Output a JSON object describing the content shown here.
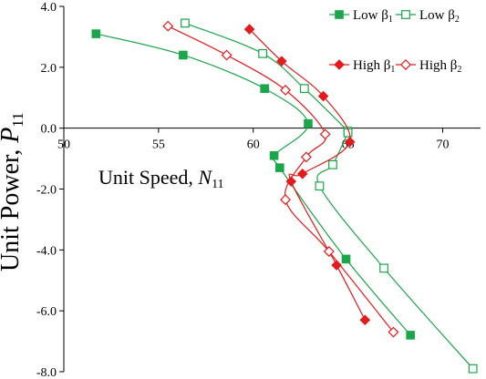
{
  "chart_data": {
    "type": "scatter",
    "xlabel": {
      "main": "Unit Speed, ",
      "var": "N",
      "sub": "11"
    },
    "ylabel": {
      "main": "Unit Power, ",
      "var": "P",
      "sub": "11"
    },
    "xlim": [
      50,
      72
    ],
    "ylim": [
      -8,
      4
    ],
    "xticks": [
      50,
      55,
      60,
      65,
      70
    ],
    "xtick_labels": [
      "50",
      "55",
      "60",
      "65",
      "70"
    ],
    "yticks": [
      4,
      2,
      0,
      -2,
      -4,
      -6,
      -8
    ],
    "ytick_labels": [
      "4.0",
      "2.0",
      "0.0",
      "-2.0",
      "-4.0",
      "-6.0",
      "-8.0"
    ],
    "grid": false,
    "legend_position": "top-right",
    "series": [
      {
        "name": "Low β₁",
        "label_main": "Low β",
        "label_sub": "1",
        "color": "#1aa64a",
        "marker": "square-filled",
        "x": [
          51.7,
          56.3,
          60.6,
          62.9,
          61.1,
          61.4,
          64.9,
          68.3
        ],
        "y": [
          3.1,
          2.4,
          1.3,
          0.15,
          -0.9,
          -1.3,
          -4.3,
          -6.8
        ]
      },
      {
        "name": "Low β₂",
        "label_main": "Low β",
        "label_sub": "2",
        "color": "#1aa64a",
        "marker": "square-open",
        "x": [
          56.4,
          60.5,
          62.7,
          65.0,
          65.0,
          64.2,
          63.5,
          66.9,
          71.6
        ],
        "y": [
          3.45,
          2.45,
          1.3,
          -0.1,
          -0.15,
          -1.2,
          -1.9,
          -4.6,
          -7.9
        ]
      },
      {
        "name": "High β₁",
        "label_main": "High β",
        "label_sub": "1",
        "color": "#e41a1c",
        "marker": "diamond-filled",
        "x": [
          59.8,
          61.5,
          63.7,
          65.1,
          62.6,
          62.0,
          64.4,
          65.9
        ],
        "y": [
          3.25,
          2.2,
          1.05,
          -0.45,
          -1.5,
          -1.75,
          -4.5,
          -6.3
        ]
      },
      {
        "name": "High β₂",
        "label_main": "High β",
        "label_sub": "2",
        "color": "#e41a1c",
        "marker": "diamond-open",
        "x": [
          55.5,
          58.6,
          61.7,
          63.8,
          62.8,
          61.7,
          64.0,
          67.4
        ],
        "y": [
          3.35,
          2.4,
          1.25,
          -0.2,
          -0.95,
          -2.35,
          -4.05,
          -6.7
        ]
      }
    ]
  }
}
